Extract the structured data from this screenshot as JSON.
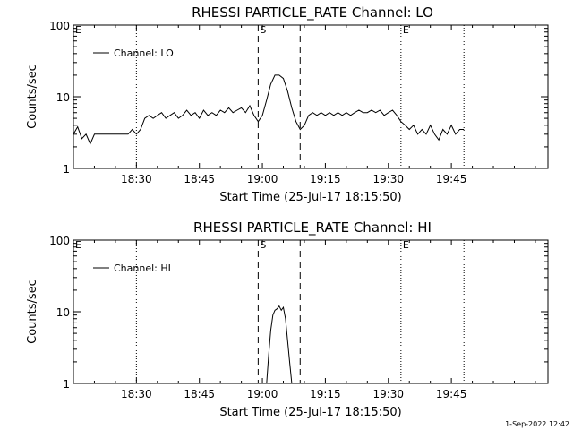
{
  "footer": {
    "timestamp": "1-Sep-2022 12:42"
  },
  "chart_data": [
    {
      "type": "line",
      "title": "RHESSI PARTICLE_RATE Channel: LO",
      "xlabel": "Start Time (25-Jul-17 18:15:50)",
      "ylabel": "Counts/sec",
      "yscale": "log",
      "ylim": [
        1,
        100
      ],
      "xlim_min": [
        0,
        113
      ],
      "xtick_min": [
        15,
        30,
        45,
        60,
        75,
        90
      ],
      "xtick_labels": [
        "18:30",
        "18:45",
        "19:00",
        "19:15",
        "19:30",
        "19:45"
      ],
      "ytick_values": [
        1,
        10,
        100
      ],
      "ytick_labels": [
        "1",
        "10",
        "100"
      ],
      "grid": false,
      "legend_position": "top-left",
      "markers": [
        {
          "label": "E",
          "x_min": 0,
          "style": "dotted"
        },
        {
          "label": "",
          "x_min": 15,
          "style": "dotted"
        },
        {
          "label": "S",
          "x_min": 44,
          "style": "dashed"
        },
        {
          "label": "",
          "x_min": 54,
          "style": "dashed"
        },
        {
          "label": "E",
          "x_min": 78,
          "style": "dotted"
        },
        {
          "label": "",
          "x_min": 93,
          "style": "dotted"
        }
      ],
      "series": [
        {
          "name": "Channel: LO",
          "x_min": [
            0,
            1,
            2,
            3,
            4,
            5,
            6,
            7,
            8,
            9,
            10,
            11,
            12,
            13,
            14,
            15,
            16,
            17,
            18,
            19,
            20,
            21,
            22,
            23,
            24,
            25,
            26,
            27,
            28,
            29,
            30,
            31,
            32,
            33,
            34,
            35,
            36,
            37,
            38,
            39,
            40,
            41,
            42,
            43,
            44,
            45,
            46,
            47,
            48,
            49,
            50,
            51,
            52,
            53,
            54,
            55,
            56,
            57,
            58,
            59,
            60,
            61,
            62,
            63,
            64,
            65,
            66,
            67,
            68,
            69,
            70,
            71,
            72,
            73,
            74,
            75,
            76,
            77,
            78,
            79,
            80,
            81,
            82,
            83,
            84,
            85,
            86,
            87,
            88,
            89,
            90,
            91,
            92,
            93
          ],
          "values": [
            3.0,
            3.8,
            2.6,
            3.0,
            2.2,
            3.0,
            3.0,
            3.0,
            3.0,
            3.0,
            3.0,
            3.0,
            3.0,
            3.0,
            3.5,
            3.0,
            3.5,
            5.0,
            5.5,
            5.0,
            5.5,
            6.0,
            5.0,
            5.5,
            6.0,
            5.0,
            5.5,
            6.5,
            5.5,
            6.0,
            5.0,
            6.5,
            5.5,
            6.0,
            5.5,
            6.5,
            6.0,
            7.0,
            6.0,
            6.5,
            7.0,
            6.0,
            7.5,
            5.5,
            4.5,
            5.5,
            9.0,
            15.0,
            20.0,
            20.0,
            18.0,
            12.0,
            7.0,
            4.5,
            3.5,
            4.0,
            5.5,
            6.0,
            5.5,
            6.0,
            5.5,
            6.0,
            5.5,
            6.0,
            5.5,
            6.0,
            5.5,
            6.0,
            6.5,
            6.0,
            6.0,
            6.5,
            6.0,
            6.5,
            5.5,
            6.0,
            6.5,
            5.5,
            4.5,
            4.0,
            3.5,
            4.0,
            3.0,
            3.5,
            3.0,
            4.0,
            3.0,
            2.5,
            3.5,
            3.0,
            4.0,
            3.0,
            3.5,
            3.5
          ]
        }
      ]
    },
    {
      "type": "line",
      "title": "RHESSI PARTICLE_RATE Channel: HI",
      "xlabel": "Start Time (25-Jul-17 18:15:50)",
      "ylabel": "Counts/sec",
      "yscale": "log",
      "ylim": [
        1,
        100
      ],
      "xlim_min": [
        0,
        113
      ],
      "xtick_min": [
        15,
        30,
        45,
        60,
        75,
        90
      ],
      "xtick_labels": [
        "18:30",
        "18:45",
        "19:00",
        "19:15",
        "19:30",
        "19:45"
      ],
      "ytick_values": [
        1,
        10,
        100
      ],
      "ytick_labels": [
        "1",
        "10",
        "100"
      ],
      "grid": false,
      "legend_position": "top-left",
      "markers": [
        {
          "label": "E",
          "x_min": 0,
          "style": "dotted"
        },
        {
          "label": "",
          "x_min": 15,
          "style": "dotted"
        },
        {
          "label": "S",
          "x_min": 44,
          "style": "dashed"
        },
        {
          "label": "",
          "x_min": 54,
          "style": "dashed"
        },
        {
          "label": "E",
          "x_min": 78,
          "style": "dotted"
        },
        {
          "label": "",
          "x_min": 93,
          "style": "dotted"
        }
      ],
      "series": [
        {
          "name": "Channel: HI",
          "x_min": [
            46.0,
            46.5,
            47.0,
            47.5,
            48.0,
            48.5,
            49.0,
            49.5,
            50.0,
            50.5,
            51.0,
            51.5,
            52.0
          ],
          "values": [
            1.0,
            2.5,
            5.5,
            9.0,
            10.5,
            11.0,
            12.0,
            10.5,
            11.5,
            8.0,
            4.0,
            2.0,
            1.0
          ]
        }
      ]
    }
  ]
}
